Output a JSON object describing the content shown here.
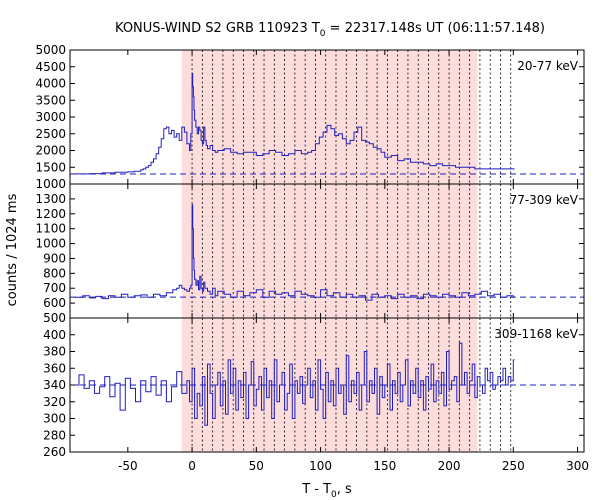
{
  "chart_data": {
    "type": "line",
    "title_main": "KONUS-WIND S2 GRB 110923 T",
    "title_sub": "0",
    "title_rest": " = 22317.148s UT (06:11:57.148)",
    "xlabel_main": "T - T",
    "xlabel_sub": "0",
    "xlabel_rest": ", s",
    "ylabel": "counts / 1024 ms",
    "xlim": [
      -95,
      305
    ],
    "x_ticks": [
      -50,
      0,
      50,
      100,
      150,
      200,
      250,
      300
    ],
    "x_tick_labels": [
      "-50",
      "0",
      "50",
      "100",
      "150",
      "200",
      "250",
      "300"
    ],
    "highlight_interval": [
      -8,
      222
    ],
    "trigger_time": 0,
    "spectrum_boundaries": [
      0,
      8,
      16,
      24,
      32,
      40,
      48,
      56,
      64,
      72,
      80,
      88,
      96,
      104,
      112,
      120,
      128,
      136,
      144,
      152,
      160,
      168,
      176,
      184,
      192,
      200,
      208,
      216,
      224,
      232,
      240,
      248
    ],
    "colors": {
      "series": "#1f1fbf",
      "highlight": "#fddcdc",
      "boundary": "#000000",
      "background_dash": "#1f1fbf"
    },
    "panels": [
      {
        "label": "20-77 keV",
        "ylim": [
          1000,
          5000
        ],
        "y_ticks": [
          1000,
          1500,
          2000,
          2500,
          3000,
          3500,
          4000,
          4500,
          5000
        ],
        "y_tick_labels": [
          "1000",
          "1500",
          "2000",
          "2500",
          "3000",
          "3500",
          "4000",
          "4500",
          "5000"
        ],
        "background_level": 1300,
        "x": [
          -92,
          -80,
          -70,
          -60,
          -50,
          -45,
          -40,
          -38,
          -36,
          -34,
          -32,
          -30,
          -28,
          -26,
          -24,
          -22,
          -20,
          -18,
          -16,
          -14,
          -12,
          -10,
          -8,
          -6,
          -4,
          -2,
          -1,
          0,
          0.5,
          1,
          1.5,
          2,
          3,
          4,
          5,
          6,
          7,
          8,
          9,
          10,
          11,
          12,
          14,
          16,
          18,
          20,
          25,
          30,
          35,
          40,
          45,
          50,
          55,
          60,
          65,
          70,
          75,
          80,
          85,
          90,
          93,
          96,
          99,
          102,
          105,
          108,
          111,
          114,
          117,
          120,
          123,
          126,
          129,
          132,
          135,
          138,
          141,
          144,
          147,
          150,
          155,
          160,
          165,
          170,
          175,
          180,
          185,
          190,
          195,
          200,
          205,
          210,
          215,
          220,
          225,
          230,
          235,
          240,
          245,
          250
        ],
        "y": [
          1300,
          1310,
          1330,
          1350,
          1360,
          1380,
          1420,
          1450,
          1500,
          1550,
          1650,
          1750,
          1900,
          2100,
          2350,
          2650,
          2700,
          2500,
          2600,
          2400,
          2500,
          2300,
          2700,
          2550,
          2200,
          2000,
          2500,
          4300,
          3900,
          3600,
          3200,
          2900,
          2700,
          2500,
          2700,
          2600,
          2300,
          2200,
          2700,
          2300,
          2150,
          2050,
          2150,
          2000,
          1950,
          2000,
          2050,
          1950,
          1900,
          1950,
          1950,
          1850,
          1900,
          2000,
          1950,
          1850,
          1900,
          2000,
          1900,
          1950,
          2000,
          2200,
          2400,
          2550,
          2750,
          2650,
          2450,
          2500,
          2350,
          2200,
          2300,
          2550,
          2700,
          2300,
          2250,
          2200,
          2100,
          2050,
          1950,
          1800,
          1850,
          1700,
          1750,
          1650,
          1650,
          1600,
          1550,
          1600,
          1550,
          1550,
          1500,
          1500,
          1500,
          1450,
          1450,
          1450,
          1450,
          1450,
          1450,
          1450
        ]
      },
      {
        "label": "77-309 keV",
        "ylim": [
          500,
          1400
        ],
        "y_ticks": [
          500,
          600,
          700,
          800,
          900,
          1000,
          1100,
          1200,
          1300
        ],
        "y_tick_labels": [
          "500",
          "600",
          "700",
          "800",
          "900",
          "1000",
          "1100",
          "1200",
          "1300"
        ],
        "background_level": 640,
        "x": [
          -92,
          -85,
          -80,
          -75,
          -70,
          -65,
          -60,
          -55,
          -50,
          -45,
          -40,
          -35,
          -30,
          -25,
          -20,
          -15,
          -12,
          -10,
          -8,
          -6,
          -4,
          -2,
          -1,
          0,
          0.5,
          1,
          1.5,
          2,
          3,
          4,
          5,
          6,
          7,
          8,
          9,
          10,
          12,
          14,
          16,
          18,
          20,
          25,
          30,
          35,
          40,
          45,
          50,
          55,
          60,
          65,
          70,
          75,
          80,
          85,
          90,
          95,
          100,
          105,
          110,
          115,
          120,
          125,
          130,
          135,
          140,
          145,
          150,
          155,
          160,
          165,
          170,
          175,
          180,
          185,
          190,
          195,
          200,
          205,
          210,
          215,
          220,
          225,
          230,
          235,
          240,
          245,
          250
        ],
        "y": [
          640,
          650,
          635,
          645,
          630,
          650,
          640,
          660,
          640,
          650,
          655,
          640,
          660,
          650,
          670,
          690,
          700,
          720,
          700,
          690,
          680,
          700,
          720,
          1260,
          1100,
          900,
          820,
          760,
          720,
          750,
          690,
          780,
          700,
          680,
          740,
          700,
          680,
          660,
          700,
          650,
          680,
          660,
          640,
          680,
          650,
          670,
          690,
          640,
          680,
          660,
          670,
          650,
          680,
          660,
          650,
          640,
          690,
          650,
          670,
          640,
          660,
          640,
          650,
          620,
          660,
          640,
          650,
          630,
          660,
          640,
          650,
          630,
          660,
          650,
          640,
          660,
          650,
          640,
          670,
          650,
          660,
          680,
          650,
          660,
          640,
          650,
          640
        ]
      },
      {
        "label": "309-1168 keV",
        "ylim": [
          260,
          420
        ],
        "y_ticks": [
          260,
          280,
          300,
          320,
          340,
          360,
          380,
          400
        ],
        "y_tick_labels": [
          "260",
          "280",
          "300",
          "320",
          "340",
          "360",
          "380",
          "400"
        ],
        "background_level": 340,
        "x": [
          -92,
          -88,
          -84,
          -80,
          -76,
          -72,
          -68,
          -64,
          -60,
          -56,
          -52,
          -48,
          -44,
          -40,
          -36,
          -32,
          -28,
          -24,
          -20,
          -16,
          -12,
          -8,
          -4,
          -2,
          0,
          2,
          4,
          6,
          8,
          10,
          12,
          14,
          16,
          18,
          20,
          22,
          24,
          26,
          28,
          30,
          32,
          34,
          36,
          38,
          40,
          42,
          44,
          46,
          48,
          50,
          52,
          54,
          56,
          58,
          60,
          62,
          64,
          66,
          68,
          70,
          72,
          74,
          76,
          78,
          80,
          82,
          84,
          86,
          88,
          90,
          92,
          94,
          96,
          98,
          100,
          102,
          104,
          106,
          108,
          110,
          112,
          114,
          116,
          118,
          120,
          122,
          124,
          126,
          128,
          130,
          132,
          134,
          136,
          138,
          140,
          142,
          144,
          146,
          148,
          150,
          152,
          154,
          156,
          158,
          160,
          162,
          164,
          166,
          168,
          170,
          172,
          174,
          176,
          178,
          180,
          182,
          184,
          186,
          188,
          190,
          192,
          194,
          196,
          198,
          200,
          202,
          204,
          206,
          208,
          210,
          212,
          214,
          216,
          218,
          220,
          222,
          224,
          226,
          228,
          230,
          232,
          234,
          236,
          238,
          240,
          242,
          244,
          246,
          248,
          250
        ],
        "y": [
          340,
          352,
          336,
          345,
          330,
          338,
          350,
          326,
          342,
          310,
          348,
          336,
          320,
          345,
          332,
          350,
          328,
          345,
          320,
          338,
          356,
          330,
          345,
          320,
          360,
          300,
          330,
          315,
          350,
          292,
          365,
          330,
          300,
          340,
          355,
          315,
          345,
          305,
          370,
          330,
          360,
          310,
          345,
          325,
          355,
          300,
          340,
          368,
          315,
          335,
          350,
          310,
          360,
          325,
          345,
          300,
          370,
          320,
          340,
          355,
          310,
          330,
          365,
          300,
          345,
          330,
          350,
          318,
          340,
          360,
          325,
          345,
          310,
          370,
          335,
          300,
          355,
          320,
          345,
          315,
          360,
          330,
          340,
          305,
          375,
          320,
          345,
          330,
          355,
          310,
          340,
          380,
          320,
          345,
          330,
          360,
          305,
          350,
          325,
          340,
          365,
          310,
          345,
          330,
          355,
          320,
          340,
          370,
          315,
          345,
          330,
          360,
          325,
          345,
          310,
          350,
          335,
          365,
          320,
          345,
          330,
          355,
          315,
          380,
          335,
          345,
          350,
          320,
          390,
          340,
          355,
          330,
          345,
          365,
          325,
          350,
          340,
          330,
          360,
          345,
          355,
          335,
          340,
          350,
          345,
          360,
          340,
          350,
          345,
          370
        ]
      }
    ]
  }
}
